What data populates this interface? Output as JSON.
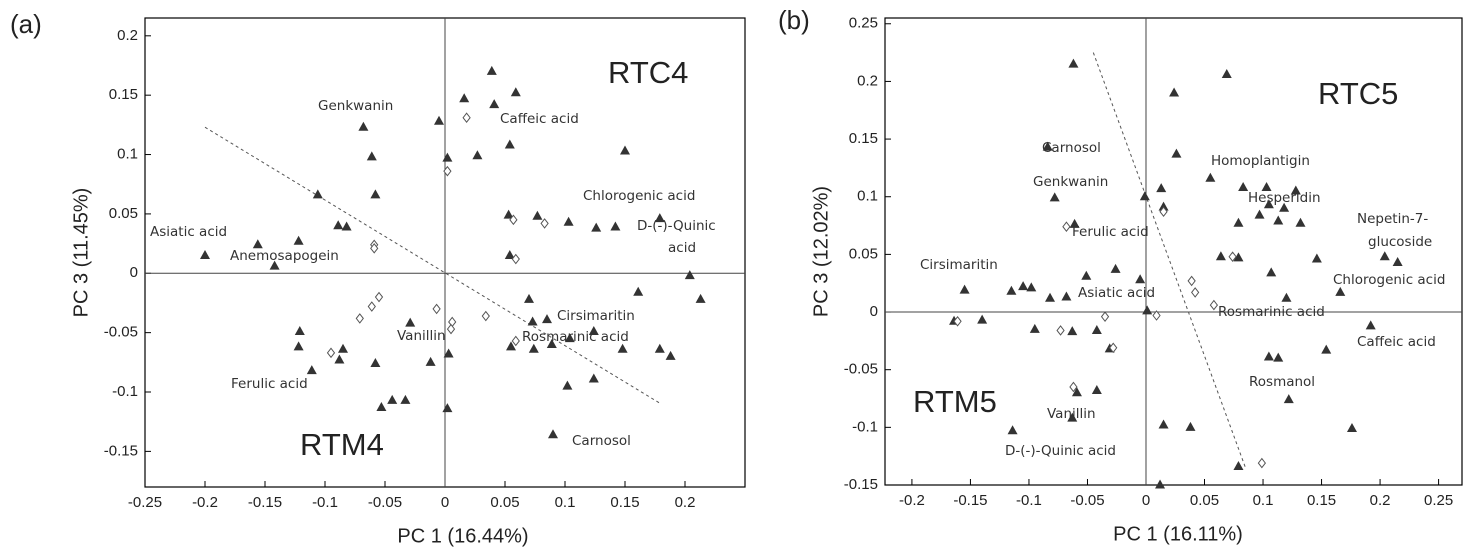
{
  "chart_data": [
    {
      "type": "scatter",
      "panel_label": "(a)",
      "xlabel": "PC 1 (16.44%)",
      "ylabel": "PC 3 (11.45%)",
      "xlim": [
        -0.25,
        0.25
      ],
      "ylim": [
        -0.18,
        0.215
      ],
      "xticks": [
        -0.25,
        -0.2,
        -0.15,
        -0.1,
        -0.05,
        0,
        0.05,
        0.1,
        0.15,
        0.2
      ],
      "yticks": [
        0.2,
        0.15,
        0.1,
        0.05,
        0,
        -0.05,
        -0.1,
        -0.15
      ],
      "group_labels": [
        "RTC4",
        "RTM4"
      ],
      "annotations": [
        "Genkwanin",
        "Caffeic acid",
        "Chlorogenic acid",
        "D-(-)-Quinic",
        "acid",
        "Asiatic acid",
        "Anemosapogein",
        "Cirsimaritin",
        "Rosmarinic acid",
        "Vanillin",
        "Ferulic acid",
        "Carnosol"
      ],
      "reference_line": {
        "x": [
          -0.2,
          0.18
        ],
        "y": [
          0.123,
          -0.11
        ]
      },
      "series": [
        {
          "marker": "triangle",
          "color": "#333333",
          "x": [
            -0.2,
            -0.156,
            -0.122,
            -0.142,
            -0.106,
            -0.089,
            -0.082,
            -0.068,
            -0.061,
            -0.058,
            -0.005,
            0.002,
            0.016,
            0.027,
            0.039,
            0.041,
            0.059,
            0.054,
            0.053,
            0.054,
            0.077,
            0.103,
            0.126,
            0.142,
            0.15,
            0.179,
            0.204,
            0.213,
            0.161,
            0.07,
            0.085,
            0.073,
            0.055,
            0.074,
            0.089,
            0.104,
            0.124,
            0.148,
            0.179,
            0.188,
            0.102,
            0.124,
            0.09,
            0.002,
            0.003,
            -0.012,
            -0.029,
            -0.033,
            -0.044,
            -0.053,
            -0.058,
            -0.085,
            -0.088,
            -0.111,
            -0.121,
            -0.122
          ],
          "y": [
            0.015,
            0.024,
            0.027,
            0.006,
            0.066,
            0.04,
            0.039,
            0.123,
            0.098,
            0.066,
            0.128,
            0.097,
            0.147,
            0.099,
            0.17,
            0.142,
            0.152,
            0.108,
            0.049,
            0.015,
            0.048,
            0.043,
            0.038,
            0.039,
            0.103,
            0.046,
            -0.002,
            -0.022,
            -0.016,
            -0.022,
            -0.039,
            -0.041,
            -0.062,
            -0.064,
            -0.06,
            -0.055,
            -0.049,
            -0.064,
            -0.064,
            -0.07,
            -0.095,
            -0.089,
            -0.136,
            -0.114,
            -0.068,
            -0.075,
            -0.042,
            -0.107,
            -0.107,
            -0.113,
            -0.076,
            -0.064,
            -0.073,
            -0.082,
            -0.049,
            -0.062
          ]
        },
        {
          "marker": "diamond",
          "color": "#555555",
          "x": [
            0.018,
            0.002,
            -0.059,
            -0.059,
            0.057,
            0.083,
            0.059,
            -0.055,
            -0.061,
            -0.071,
            -0.095,
            -0.007,
            0.006,
            0.005,
            0.034,
            0.059
          ],
          "y": [
            0.131,
            0.086,
            0.024,
            0.021,
            0.045,
            0.042,
            0.012,
            -0.02,
            -0.028,
            -0.038,
            -0.067,
            -0.03,
            -0.041,
            -0.047,
            -0.036,
            -0.057
          ]
        }
      ]
    },
    {
      "type": "scatter",
      "panel_label": "(b)",
      "xlabel": "PC 1 (16.11%)",
      "ylabel": "PC 3 (12.02%)",
      "xlim": [
        -0.223,
        0.27
      ],
      "ylim": [
        -0.15,
        0.255
      ],
      "xticks": [
        -0.2,
        -0.15,
        -0.1,
        -0.05,
        0,
        0.05,
        0.1,
        0.15,
        0.2,
        0.25
      ],
      "yticks": [
        0.25,
        0.2,
        0.15,
        0.1,
        0.05,
        0,
        -0.05,
        -0.1,
        -0.15
      ],
      "group_labels": [
        "RTC5",
        "RTM5"
      ],
      "annotations": [
        "Carnosol",
        "Genkwanin",
        "Ferulic acid",
        "Cirsimaritin",
        "Asiatic acid",
        "Homoplantigin",
        "Hesperidin",
        "Nepetin-7-",
        "glucoside",
        "Chlorogenic acid",
        "Rosmarinic acid",
        "Caffeic acid",
        "Rosmanol",
        "Vanillin",
        "D-(-)-Quinic acid"
      ],
      "reference_line": {
        "x": [
          -0.045,
          0.085
        ],
        "y": [
          0.225,
          -0.135
        ]
      },
      "series": [
        {
          "marker": "triangle",
          "color": "#333333",
          "x": [
            -0.062,
            -0.084,
            -0.078,
            -0.061,
            -0.001,
            0.013,
            0.015,
            0.024,
            0.026,
            0.069,
            0.055,
            0.079,
            0.097,
            0.113,
            0.079,
            0.064,
            0.083,
            0.103,
            0.105,
            0.128,
            0.118,
            0.132,
            0.146,
            0.107,
            0.12,
            0.166,
            0.204,
            0.215,
            0.192,
            0.154,
            0.105,
            0.113,
            0.122,
            0.176,
            0.079,
            0.015,
            0.012,
            0.038,
            -0.005,
            -0.026,
            -0.051,
            -0.068,
            -0.063,
            -0.042,
            0.001,
            -0.082,
            -0.098,
            -0.105,
            -0.115,
            -0.155,
            -0.164,
            -0.14,
            -0.095,
            -0.031,
            -0.042,
            -0.059,
            -0.063,
            -0.114
          ],
          "y": [
            0.215,
            0.143,
            0.099,
            0.076,
            0.1,
            0.107,
            0.091,
            0.19,
            0.137,
            0.206,
            0.116,
            0.077,
            0.084,
            0.079,
            0.047,
            0.048,
            0.108,
            0.108,
            0.093,
            0.105,
            0.09,
            0.077,
            0.046,
            0.034,
            0.012,
            0.017,
            0.048,
            0.043,
            -0.012,
            -0.033,
            -0.039,
            -0.04,
            -0.076,
            -0.101,
            -0.134,
            -0.098,
            -0.15,
            -0.1,
            0.028,
            0.037,
            0.031,
            0.013,
            -0.017,
            -0.016,
            0.001,
            0.012,
            0.021,
            0.022,
            0.018,
            0.019,
            -0.008,
            -0.007,
            -0.015,
            -0.032,
            -0.068,
            -0.07,
            -0.092,
            -0.103
          ]
        },
        {
          "marker": "diamond",
          "color": "#555555",
          "x": [
            -0.068,
            0.015,
            0.074,
            0.039,
            0.042,
            0.058,
            0.009,
            -0.035,
            -0.073,
            -0.161,
            -0.028,
            -0.062,
            0.099
          ],
          "y": [
            0.074,
            0.087,
            0.048,
            0.027,
            0.017,
            0.006,
            -0.003,
            -0.004,
            -0.016,
            -0.008,
            -0.031,
            -0.065,
            -0.131
          ]
        }
      ]
    }
  ]
}
